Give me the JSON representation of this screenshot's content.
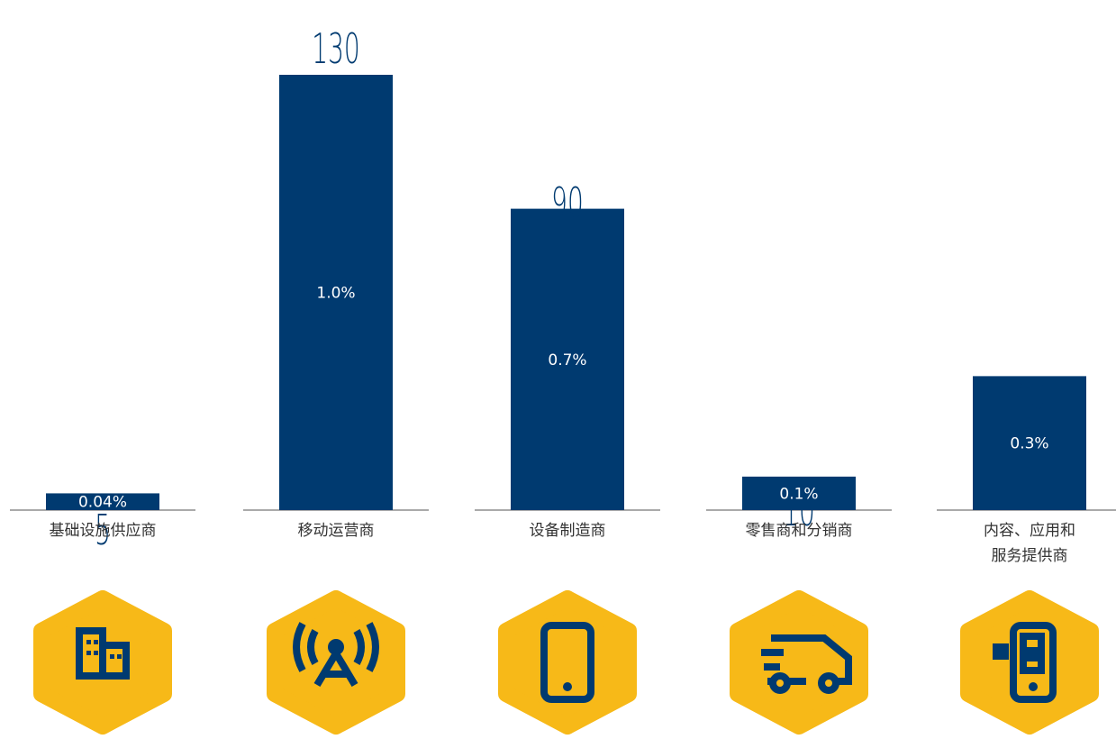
{
  "chart_data": {
    "type": "bar",
    "categories": [
      "基础设施供应商",
      "移动运营商",
      "设备制造商",
      "零售商和分销商",
      "内容、应用和\n服务提供商"
    ],
    "values": [
      5,
      130,
      90,
      10,
      40
    ],
    "share_labels": [
      "0.04%",
      "1.0%",
      "0.7%",
      "0.1%",
      "0.3%"
    ],
    "color": "#003a70"
  }
}
